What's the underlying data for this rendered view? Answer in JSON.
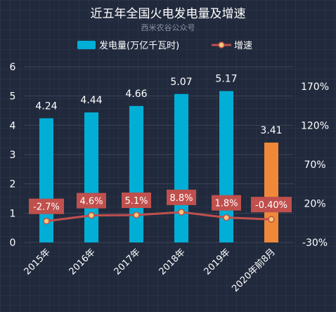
{
  "chart_data": {
    "type": "bar",
    "title": "近五年全国火电发电量及增速",
    "subtitle": "西米农谷公众号",
    "categories": [
      "2015年",
      "2016年",
      "2017年",
      "2018年",
      "2019年",
      "2020年前8月"
    ],
    "series": [
      {
        "name": "发电量(万亿千瓦时)",
        "type": "bar",
        "axis": "left",
        "values": [
          4.24,
          4.44,
          4.66,
          5.07,
          5.17,
          3.41
        ],
        "labels": [
          "4.24",
          "4.44",
          "4.66",
          "5.07",
          "5.17",
          "3.41"
        ],
        "color": "#00aed6",
        "highlight_color": "#f0883a"
      },
      {
        "name": "增速",
        "type": "line",
        "axis": "right",
        "values": [
          -2.7,
          4.6,
          5.1,
          8.8,
          1.8,
          -0.4
        ],
        "labels": [
          "-2.7%",
          "4.6%",
          "5.1%",
          "8.8%",
          "1.8%",
          "-0.40%"
        ],
        "color": "#c0504d",
        "marker_color": "#f5c878"
      }
    ],
    "yleft": {
      "ylim": [
        0,
        6
      ],
      "ticks": [
        "0",
        "1",
        "2",
        "3",
        "4",
        "5",
        "6"
      ]
    },
    "yright": {
      "ylim": [
        -30,
        195
      ],
      "ticks": [
        "-30%",
        "20%",
        "70%",
        "120%",
        "170%"
      ],
      "tick_values": [
        -30,
        20,
        70,
        120,
        170
      ]
    },
    "legend": {
      "position": "top"
    },
    "grid": true
  }
}
